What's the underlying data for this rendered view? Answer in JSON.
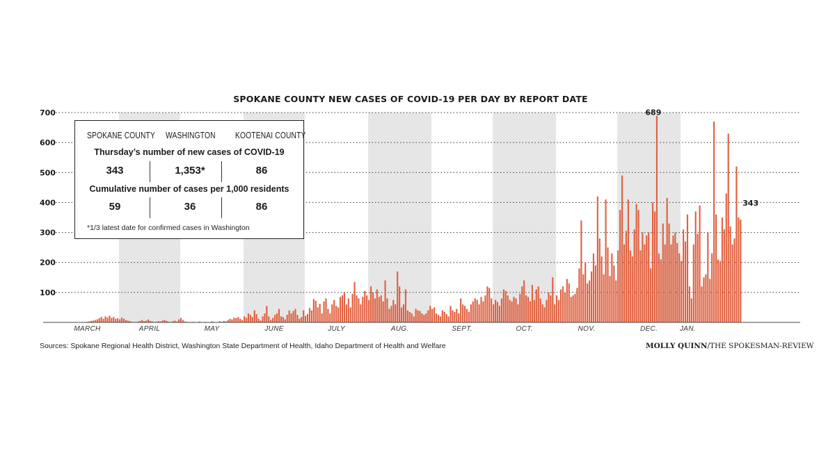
{
  "chart_data": {
    "type": "bar",
    "title": "SPOKANE COUNTY NEW CASES OF COVID-19 PER DAY BY REPORT DATE",
    "xlabel": "",
    "ylabel": "",
    "ylim": [
      0,
      700
    ],
    "yticks": [
      100,
      200,
      300,
      400,
      500,
      600,
      700
    ],
    "grid": "dotted horizontal",
    "shaded_alternate_months": true,
    "months": [
      "MARCH",
      "APRIL",
      "MAY",
      "JUNE",
      "JULY",
      "AUG.",
      "SEPT.",
      "OCT.",
      "NOV.",
      "DEC.",
      "JAN."
    ],
    "days_per_month": [
      31,
      30,
      31,
      30,
      31,
      31,
      30,
      31,
      30,
      31,
      7
    ],
    "bar_color": "#e0603f",
    "start_day_of_march": 5,
    "values": [
      1,
      0,
      0,
      0,
      0,
      1,
      0,
      0,
      0,
      0,
      0,
      2,
      3,
      5,
      6,
      8,
      10,
      14,
      18,
      12,
      20,
      16,
      22,
      15,
      18,
      12,
      14,
      10,
      16,
      12,
      8,
      6,
      4,
      2,
      0,
      0,
      3,
      5,
      8,
      4,
      6,
      10,
      5,
      3,
      0,
      2,
      4,
      3,
      6,
      8,
      5,
      2,
      1,
      4,
      6,
      3,
      10,
      15,
      8,
      3,
      2,
      0,
      1,
      2,
      0,
      0,
      3,
      1,
      0,
      2,
      0,
      1,
      3,
      2,
      0,
      1,
      4,
      2,
      5,
      3,
      8,
      12,
      10,
      16,
      14,
      18,
      12,
      8,
      20,
      15,
      30,
      25,
      18,
      40,
      28,
      12,
      6,
      20,
      30,
      55,
      20,
      8,
      15,
      25,
      30,
      45,
      20,
      18,
      10,
      25,
      40,
      30,
      38,
      45,
      25,
      12,
      18,
      40,
      22,
      28,
      48,
      40,
      78,
      72,
      50,
      62,
      30,
      70,
      80,
      45,
      30,
      60,
      75,
      55,
      50,
      85,
      90,
      100,
      60,
      80,
      50,
      95,
      135,
      90,
      80,
      60,
      85,
      105,
      90,
      75,
      120,
      100,
      80,
      110,
      85,
      90,
      70,
      140,
      80,
      45,
      55,
      75,
      60,
      170,
      120,
      50,
      60,
      110,
      40,
      35,
      30,
      20,
      45,
      40,
      38,
      30,
      25,
      30,
      40,
      55,
      45,
      50,
      30,
      25,
      20,
      40,
      35,
      28,
      20,
      55,
      40,
      35,
      45,
      30,
      80,
      60,
      55,
      45,
      35,
      60,
      70,
      80,
      75,
      60,
      85,
      70,
      90,
      120,
      115,
      80,
      60,
      75,
      68,
      55,
      80,
      110,
      105,
      90,
      75,
      70,
      85,
      80,
      60,
      95,
      120,
      140,
      90,
      85,
      70,
      125,
      75,
      110,
      120,
      80,
      60,
      50,
      75,
      100,
      90,
      150,
      60,
      90,
      75,
      110,
      120,
      100,
      145,
      130,
      85,
      90,
      95,
      115,
      180,
      340,
      160,
      200,
      130,
      140,
      170,
      230,
      190,
      420,
      280,
      220,
      160,
      410,
      250,
      155,
      230,
      190,
      140,
      240,
      375,
      490,
      260,
      305,
      410,
      240,
      220,
      310,
      395,
      375,
      240,
      300,
      260,
      290,
      300,
      180,
      400,
      370,
      689,
      230,
      210,
      330,
      260,
      415,
      330,
      260,
      290,
      300,
      265,
      230,
      205,
      310,
      270,
      360,
      120,
      80,
      260,
      370,
      295,
      390,
      120,
      150,
      160,
      300,
      145,
      230,
      670,
      360,
      210,
      205,
      350,
      310,
      430,
      630,
      320,
      260,
      280,
      520,
      350,
      343
    ],
    "annotations": [
      {
        "label": "689",
        "value": 689
      },
      {
        "label": "343",
        "value": 343
      }
    ]
  },
  "info_box": {
    "columns": [
      "SPOKANE COUNTY",
      "WASHINGTON",
      "KOOTENAI COUNTY"
    ],
    "row1_title": "Thursday’s number of new cases of COVID-19",
    "row1_values": [
      "343",
      "1,353*",
      "86"
    ],
    "row2_title": "Cumulative number of cases per 1,000 residents",
    "row2_values": [
      "59",
      "36",
      "86"
    ],
    "footnote": "*1/3 latest date for confirmed cases in Washington"
  },
  "sources": "Sources: Spokane Regional Health District, Washington State Department of Health, Idaho Department of Health and Welfare",
  "credit_name": "MOLLY QUINN",
  "credit_org": "/THE SPOKESMAN-REVIEW"
}
